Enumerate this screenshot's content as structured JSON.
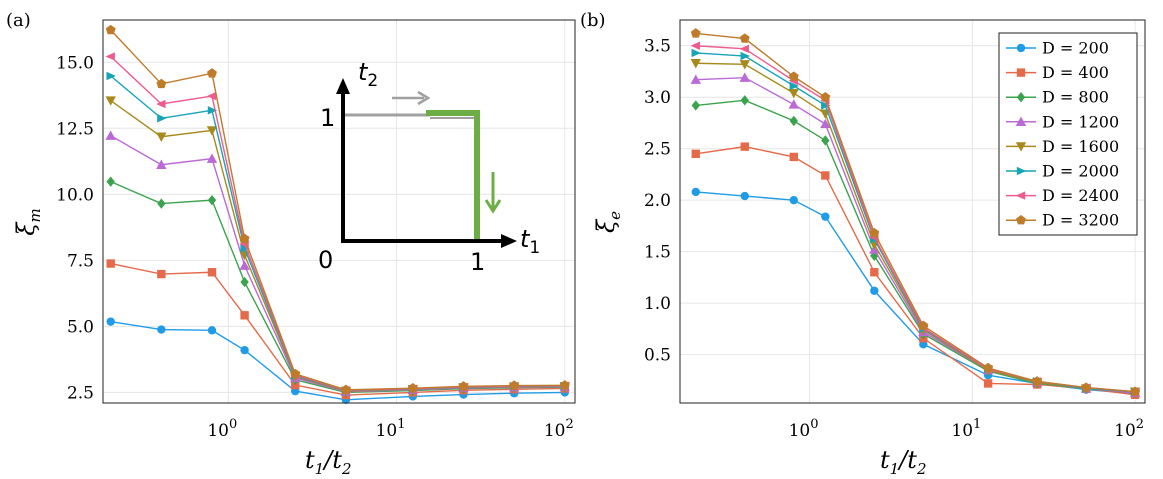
{
  "colors": [
    "#1f9be8",
    "#e56a4a",
    "#3ba34d",
    "#bb69d6",
    "#a88a1c",
    "#16a4b6",
    "#ee5b8f",
    "#c07b2a"
  ],
  "markers": [
    "circle",
    "square",
    "diamond",
    "triangle-up",
    "triangle-down",
    "triangle-right",
    "triangle-left",
    "pentagon"
  ],
  "chart_data": [
    {
      "panel": "(a)",
      "type": "line",
      "xscale": "log",
      "xlabel_main": "t",
      "xlabel_sub1": "1",
      "xlabel_slash": "/t",
      "xlabel_sub2": "2",
      "ylabel_main": "ξ",
      "ylabel_sub": "m",
      "xlim": [
        0.18,
        115
      ],
      "ylim": [
        2.1,
        16.6
      ],
      "xticks": [
        {
          "v": 1,
          "label": "10",
          "exp": "0"
        },
        {
          "v": 10,
          "label": "10",
          "exp": "1"
        },
        {
          "v": 100,
          "label": "10",
          "exp": "2"
        }
      ],
      "yticks": [
        {
          "v": 2.5,
          "label": "2.5"
        },
        {
          "v": 5.0,
          "label": "5.0"
        },
        {
          "v": 7.5,
          "label": "7.5"
        },
        {
          "v": 10.0,
          "label": "10.0"
        },
        {
          "v": 12.5,
          "label": "12.5"
        },
        {
          "v": 15.0,
          "label": "15.0"
        }
      ],
      "x": [
        0.2,
        0.4,
        0.8,
        1.25,
        2.5,
        5,
        12.5,
        25,
        50,
        100
      ],
      "series": [
        {
          "name": "D = 200",
          "values": [
            5.18,
            4.88,
            4.85,
            4.1,
            2.55,
            2.22,
            2.35,
            2.42,
            2.47,
            2.5
          ]
        },
        {
          "name": "D = 400",
          "values": [
            7.38,
            6.98,
            7.05,
            5.42,
            2.78,
            2.4,
            2.5,
            2.58,
            2.62,
            2.65
          ]
        },
        {
          "name": "D = 800",
          "values": [
            10.48,
            9.65,
            9.78,
            6.68,
            2.98,
            2.5,
            2.57,
            2.64,
            2.68,
            2.7
          ]
        },
        {
          "name": "D = 1200",
          "values": [
            12.22,
            11.12,
            11.35,
            7.3,
            3.05,
            2.53,
            2.6,
            2.67,
            2.7,
            2.72
          ]
        },
        {
          "name": "D = 1600",
          "values": [
            13.55,
            12.18,
            12.42,
            7.7,
            3.1,
            2.55,
            2.62,
            2.69,
            2.72,
            2.73
          ]
        },
        {
          "name": "D = 2000",
          "values": [
            14.48,
            12.88,
            13.18,
            7.95,
            3.13,
            2.57,
            2.63,
            2.7,
            2.73,
            2.74
          ]
        },
        {
          "name": "D = 2400",
          "values": [
            15.22,
            13.42,
            13.72,
            8.12,
            3.16,
            2.58,
            2.64,
            2.71,
            2.74,
            2.75
          ]
        },
        {
          "name": "D = 3200",
          "values": [
            16.22,
            14.18,
            14.58,
            8.32,
            3.2,
            2.6,
            2.66,
            2.73,
            2.76,
            2.77
          ]
        }
      ],
      "inset": {
        "ylabel": "t",
        "ylabel_sub": "2",
        "xlabel": "t",
        "xlabel_sub": "1",
        "origin": "0",
        "xone": "1",
        "yone": "1",
        "arrows": [
          "→",
          "↓"
        ]
      }
    },
    {
      "panel": "(b)",
      "type": "line",
      "xscale": "log",
      "xlabel_main": "t",
      "xlabel_sub1": "1",
      "xlabel_slash": "/t",
      "xlabel_sub2": "2",
      "ylabel_main": "ξ",
      "ylabel_sub": "e",
      "xlim": [
        0.16,
        115
      ],
      "ylim": [
        0.03,
        3.75
      ],
      "xticks": [
        {
          "v": 1,
          "label": "10",
          "exp": "0"
        },
        {
          "v": 10,
          "label": "10",
          "exp": "1"
        },
        {
          "v": 100,
          "label": "10",
          "exp": "2"
        }
      ],
      "yticks": [
        {
          "v": 0.5,
          "label": "0.5"
        },
        {
          "v": 1.0,
          "label": "1.0"
        },
        {
          "v": 1.5,
          "label": "1.5"
        },
        {
          "v": 2.0,
          "label": "2.0"
        },
        {
          "v": 2.5,
          "label": "2.5"
        },
        {
          "v": 3.0,
          "label": "3.0"
        },
        {
          "v": 3.5,
          "label": "3.5"
        }
      ],
      "x": [
        0.2,
        0.4,
        0.8,
        1.25,
        2.5,
        5,
        12.5,
        25,
        50,
        100
      ],
      "series": [
        {
          "name": "D = 200",
          "values": [
            2.08,
            2.04,
            2.0,
            1.84,
            1.12,
            0.6,
            0.3,
            0.22,
            0.16,
            0.12
          ]
        },
        {
          "name": "D = 400",
          "values": [
            2.45,
            2.52,
            2.42,
            2.24,
            1.3,
            0.66,
            0.22,
            0.21,
            0.17,
            0.11
          ]
        },
        {
          "name": "D = 800",
          "values": [
            2.92,
            2.97,
            2.77,
            2.58,
            1.46,
            0.7,
            0.34,
            0.22,
            0.17,
            0.13
          ]
        },
        {
          "name": "D = 1200",
          "values": [
            3.17,
            3.19,
            2.93,
            2.74,
            1.52,
            0.72,
            0.35,
            0.23,
            0.17,
            0.13
          ]
        },
        {
          "name": "D = 1600",
          "values": [
            3.33,
            3.32,
            3.04,
            2.84,
            1.57,
            0.74,
            0.35,
            0.23,
            0.17,
            0.14
          ]
        },
        {
          "name": "D = 2000",
          "values": [
            3.43,
            3.4,
            3.11,
            2.92,
            1.62,
            0.75,
            0.36,
            0.24,
            0.17,
            0.14
          ]
        },
        {
          "name": "D = 2400",
          "values": [
            3.5,
            3.47,
            3.16,
            2.97,
            1.64,
            0.76,
            0.36,
            0.24,
            0.18,
            0.14
          ]
        },
        {
          "name": "D = 3200",
          "values": [
            3.62,
            3.57,
            3.2,
            3.0,
            1.68,
            0.78,
            0.37,
            0.24,
            0.18,
            0.14
          ]
        }
      ],
      "legend": {
        "position": "top-right",
        "items": [
          "D = 200",
          "D = 400",
          "D = 800",
          "D = 1200",
          "D = 1600",
          "D = 2000",
          "D = 2400",
          "D = 3200"
        ]
      }
    }
  ]
}
